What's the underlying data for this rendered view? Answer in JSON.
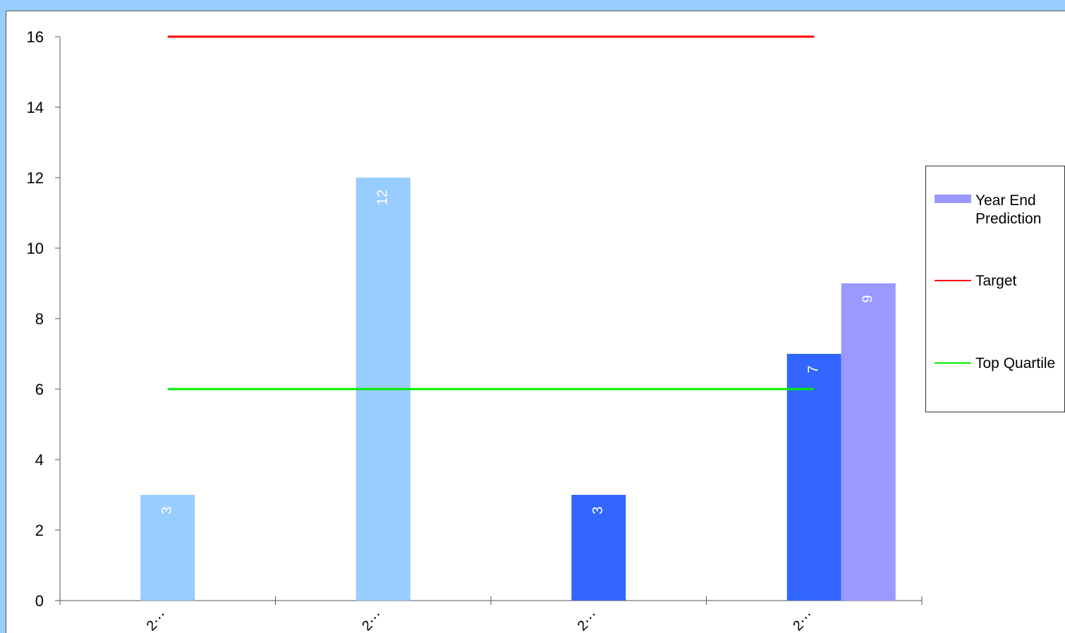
{
  "chart_data": {
    "type": "bar",
    "categories": [
      "2⋯",
      "2⋯",
      "2⋯",
      "2⋯"
    ],
    "bars": [
      {
        "category_index": 0,
        "slot": 0,
        "value": 3,
        "color": "#99ccff",
        "label": "3"
      },
      {
        "category_index": 1,
        "slot": 0,
        "value": 12,
        "color": "#99ccff",
        "label": "12"
      },
      {
        "category_index": 2,
        "slot": 0,
        "value": 3,
        "color": "#3366ff",
        "label": "3"
      },
      {
        "category_index": 3,
        "slot": 0,
        "value": 7,
        "color": "#3366ff",
        "label": "7"
      },
      {
        "category_index": 3,
        "slot": 1,
        "value": 9,
        "color": "#9999ff",
        "label": "9"
      }
    ],
    "reference_lines": [
      {
        "name": "Target",
        "value": 16,
        "color": "#ff0000"
      },
      {
        "name": "Top Quartile",
        "value": 6,
        "color": "#00ee00"
      }
    ],
    "ylim": [
      0,
      16
    ],
    "yticks": [
      0,
      2,
      4,
      6,
      8,
      10,
      12,
      14,
      16
    ],
    "grid": false,
    "legend_position": "right"
  },
  "legend": {
    "items": [
      {
        "label": "Year End Prediction",
        "kind": "bar",
        "color": "#9999ff"
      },
      {
        "label": "Target",
        "kind": "line",
        "color": "#ff0000"
      },
      {
        "label": "Top Quartile",
        "kind": "line",
        "color": "#00ee00"
      }
    ]
  }
}
